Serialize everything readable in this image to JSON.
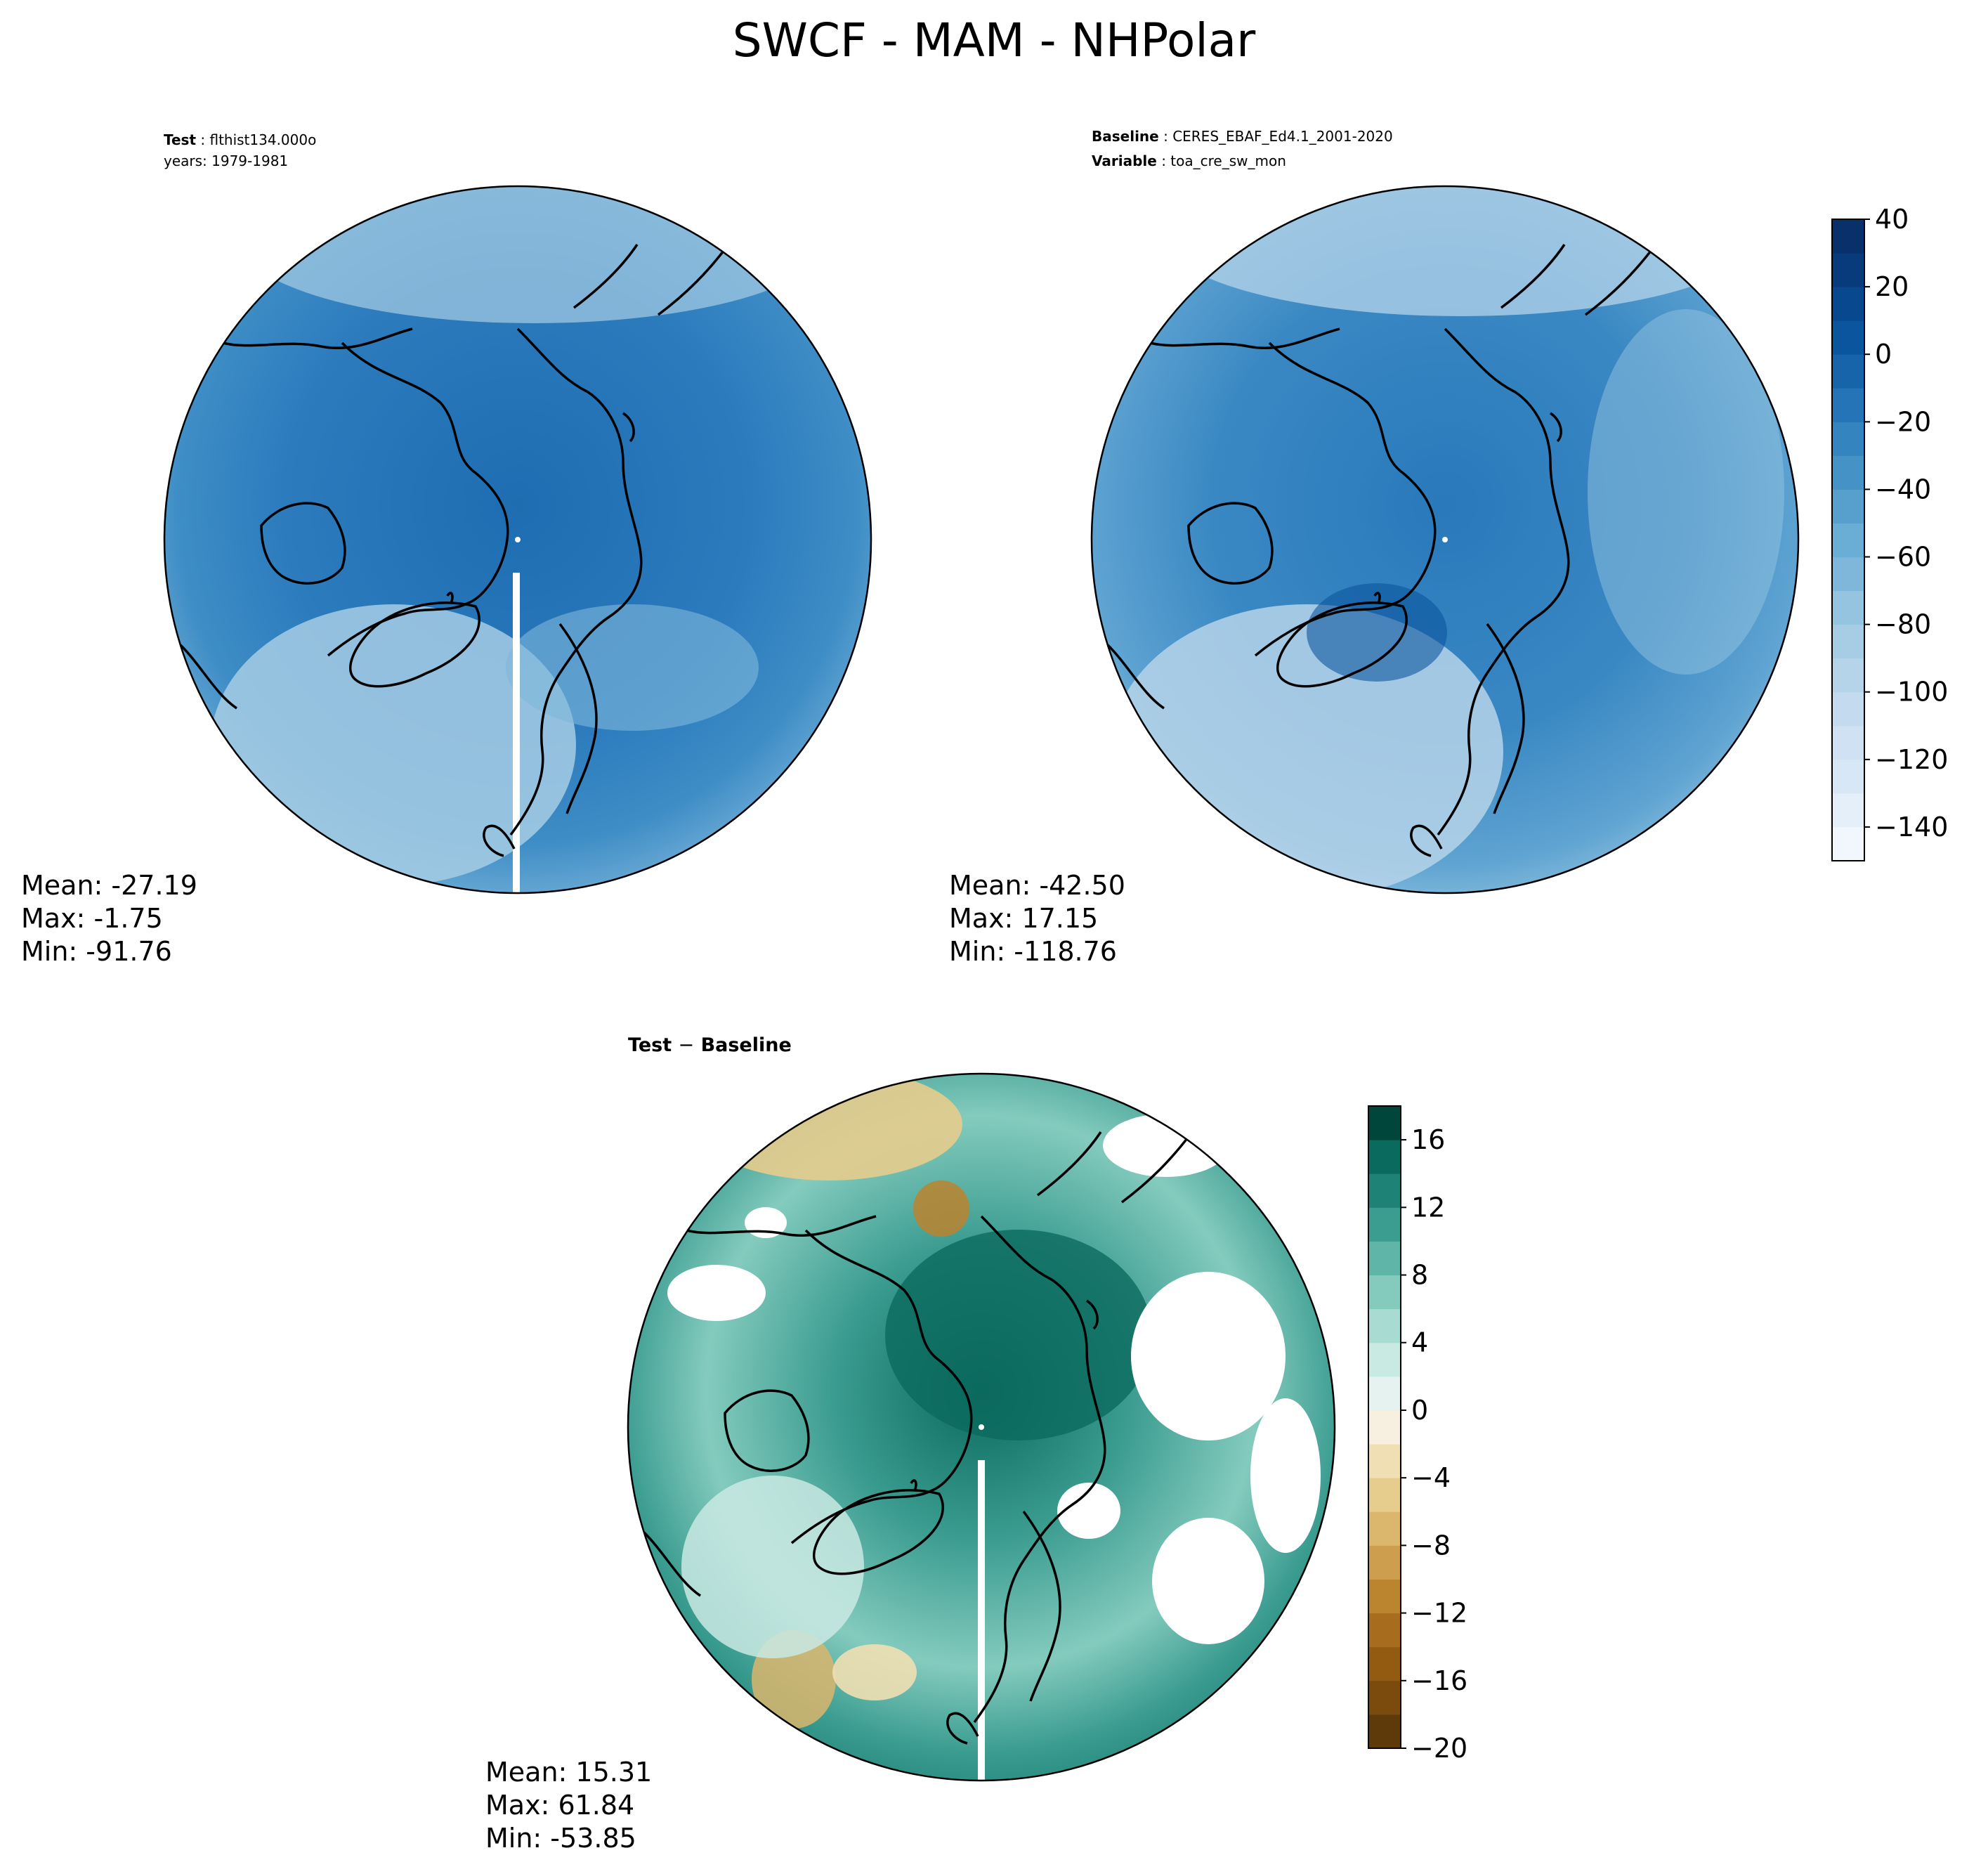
{
  "title": "SWCF - MAM - NHPolar",
  "panels": {
    "test": {
      "label1_key": "Test",
      "label1_value": "flthist134.000o",
      "label2": "years: 1979-1981",
      "stats": {
        "mean": "Mean: -27.19",
        "max": "Max: -1.75",
        "min": "Min: -91.76"
      }
    },
    "baseline": {
      "label1_key": "Baseline",
      "label1_value": "CERES_EBAF_Ed4.1_2001-2020",
      "label2_key": "Variable",
      "label2_value": "toa_cre_sw_mon",
      "stats": {
        "mean": "Mean: -42.50",
        "max": "Max: 17.15",
        "min": "Min: -118.76"
      }
    },
    "diff": {
      "label_test": "Test",
      "label_sep": "−",
      "label_baseline": "Baseline",
      "stats": {
        "mean": "Mean: 15.31",
        "max": "Max: 61.84",
        "min": "Min: -53.85"
      }
    }
  },
  "chart_data": [
    {
      "type": "heatmap",
      "name": "Test",
      "projection": "north polar stereographic",
      "mean": -27.19,
      "max": -1.75,
      "min": -91.76,
      "colormap": "Blues"
    },
    {
      "type": "heatmap",
      "name": "Baseline",
      "projection": "north polar stereographic",
      "mean": -42.5,
      "max": 17.15,
      "min": -118.76,
      "colormap": "Blues",
      "colorbar": {
        "range": [
          -150,
          40
        ],
        "levels": [
          -150,
          -140,
          -130,
          -120,
          -110,
          -100,
          -90,
          -80,
          -70,
          -60,
          -50,
          -40,
          -30,
          -20,
          -10,
          0,
          10,
          20,
          30,
          40
        ],
        "ticks": [
          "40",
          "20",
          "0",
          "−20",
          "−40",
          "−60",
          "−80",
          "−100",
          "−120",
          "−140"
        ],
        "tick_values": [
          40,
          20,
          0,
          -20,
          -40,
          -60,
          -80,
          -100,
          -120,
          -140
        ],
        "colors": [
          "#f2f7fd",
          "#e5eff9",
          "#d8e7f5",
          "#cfe1f2",
          "#c4daee",
          "#b6d4e9",
          "#a6cde4",
          "#94c4df",
          "#7fb7da",
          "#6aaed6",
          "#57a0ce",
          "#4592c6",
          "#3484bf",
          "#2474b7",
          "#1764ab",
          "#0b559f",
          "#08488e",
          "#083b7c",
          "#08306b"
        ]
      }
    },
    {
      "type": "heatmap",
      "name": "Test − Baseline",
      "projection": "north polar stereographic",
      "mean": 15.31,
      "max": 61.84,
      "min": -53.85,
      "colormap": "BrBG",
      "colorbar": {
        "range": [
          -20,
          18
        ],
        "levels": [
          -20,
          -18,
          -16,
          -14,
          -12,
          -10,
          -8,
          -6,
          -4,
          -2,
          0,
          2,
          4,
          6,
          8,
          10,
          12,
          14,
          16,
          18
        ],
        "ticks": [
          "16",
          "12",
          "8",
          "4",
          "0",
          "−4",
          "−8",
          "−12",
          "−16",
          "−20"
        ],
        "tick_values": [
          16,
          12,
          8,
          4,
          0,
          -4,
          -8,
          -12,
          -16,
          -20
        ],
        "colors": [
          "#5e3a0a",
          "#7a4b0d",
          "#935a12",
          "#a76c1e",
          "#bb842f",
          "#cc9e4e",
          "#dbb66d",
          "#e6cc8d",
          "#f0dfb3",
          "#f7f0e0",
          "#e5f2f0",
          "#c9e9e3",
          "#a8dbd2",
          "#84cbbe",
          "#5eb5a8",
          "#3b9c90",
          "#1f8277",
          "#0b6a5e",
          "#01463a"
        ]
      }
    }
  ]
}
